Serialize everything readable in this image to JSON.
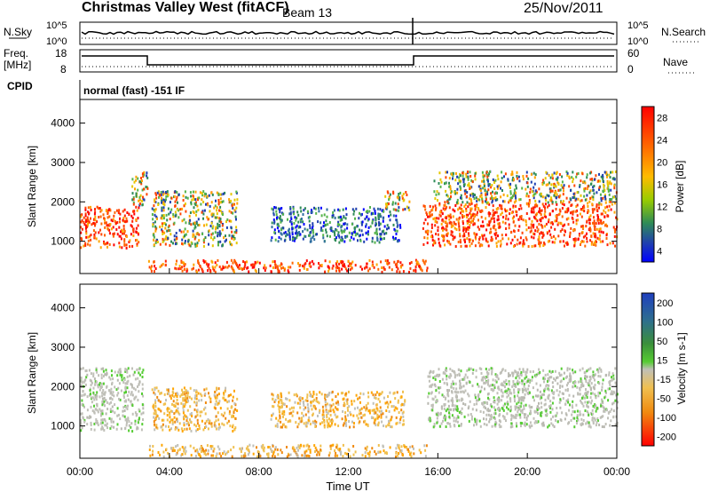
{
  "header": {
    "title": "Christmas Valley West (fitACF)",
    "beam": "Beam 13",
    "date": "25/Nov/2011"
  },
  "panels": {
    "nsky": {
      "left_label": "N.Sky",
      "right_label": "N.Search",
      "left_ticks": [
        "10^5",
        "10^0"
      ],
      "right_ticks": [
        "10^5",
        "10^0"
      ]
    },
    "freq": {
      "left_label": "Freq.",
      "left_unit": "[MHz]",
      "right_label": "Nave",
      "left_ticks": [
        "18",
        "8"
      ],
      "right_ticks": [
        "60",
        "0"
      ]
    },
    "cpid": {
      "label": "CPID",
      "mode_text": "normal (fast) -151 IF"
    }
  },
  "chart_data": [
    {
      "type": "heatmap",
      "name": "power",
      "ylabel": "Slant Range [km]",
      "yticks": [
        "4000",
        "3000",
        "2000",
        "1000"
      ],
      "colorbar": {
        "label": "Power [dB]",
        "ticks": [
          "28",
          "24",
          "20",
          "16",
          "12",
          "8",
          "4"
        ],
        "colors": [
          "#ff0000",
          "#ff3300",
          "#ff7700",
          "#ffa500",
          "#e6c800",
          "#aacc00",
          "#55b44b",
          "#2e8b57",
          "#2f6ea0",
          "#1f3fb0",
          "#0000ff"
        ]
      },
      "regions": [
        {
          "t0": 0.0,
          "t1": 2.6,
          "r0": 850,
          "r1": 1900,
          "level": "high"
        },
        {
          "t0": 2.3,
          "t1": 3.0,
          "r0": 1900,
          "r1": 2800,
          "level": "mid"
        },
        {
          "t0": 3.2,
          "t1": 7.0,
          "r0": 900,
          "r1": 2300,
          "level": "mid"
        },
        {
          "t0": 8.5,
          "t1": 14.3,
          "r0": 1000,
          "r1": 1900,
          "level": "low"
        },
        {
          "t0": 13.6,
          "t1": 14.7,
          "r0": 1800,
          "r1": 2300,
          "level": "mid"
        },
        {
          "t0": 15.3,
          "t1": 24.0,
          "r0": 900,
          "r1": 2000,
          "level": "high"
        },
        {
          "t0": 15.8,
          "t1": 24.0,
          "r0": 2000,
          "r1": 2800,
          "level": "mid"
        },
        {
          "t0": 3.0,
          "t1": 15.5,
          "r0": 250,
          "r1": 550,
          "level": "high"
        }
      ]
    },
    {
      "type": "heatmap",
      "name": "velocity",
      "ylabel": "Slant Range [km]",
      "xlabel": "Time UT",
      "xticks": [
        "00:00",
        "04:00",
        "08:00",
        "12:00",
        "16:00",
        "20:00",
        "00:00"
      ],
      "yticks": [
        "4000",
        "3000",
        "2000",
        "1000"
      ],
      "colorbar": {
        "label": "Velocity [m s-1]",
        "ticks": [
          "200",
          "100",
          "50",
          "15",
          "-15",
          "-50",
          "-100",
          "-200"
        ],
        "colors": [
          "#1f3fbf",
          "#2e6e8e",
          "#3b8f3b",
          "#55cc33",
          "#c0c0b8",
          "#f0c050",
          "#f08a10",
          "#f05010",
          "#ff0000"
        ]
      },
      "regions": [
        {
          "t0": 0.0,
          "t1": 2.8,
          "r0": 900,
          "r1": 2500,
          "level": "gray"
        },
        {
          "t0": 3.2,
          "t1": 7.0,
          "r0": 900,
          "r1": 2000,
          "level": "orange"
        },
        {
          "t0": 8.5,
          "t1": 14.5,
          "r0": 1000,
          "r1": 1900,
          "level": "orange"
        },
        {
          "t0": 15.5,
          "t1": 24.0,
          "r0": 1000,
          "r1": 2500,
          "level": "gray"
        },
        {
          "t0": 3.0,
          "t1": 15.5,
          "r0": 250,
          "r1": 550,
          "level": "orange"
        }
      ]
    }
  ]
}
